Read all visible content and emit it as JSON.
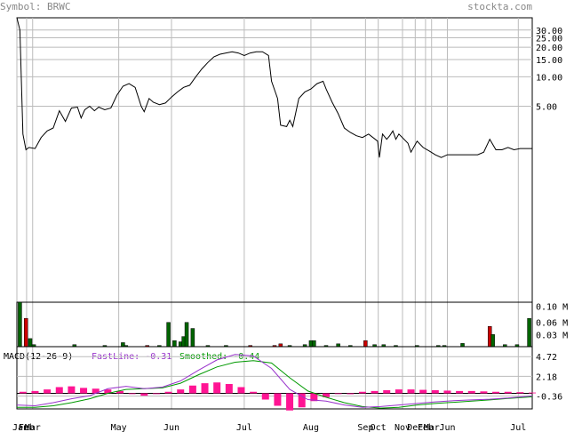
{
  "header": {
    "symbol_label": "Symbol: BRWC",
    "brand": "stockta.com"
  },
  "colors": {
    "header_text": "#888888",
    "frame": "#000000",
    "grid": "#bbbbbb",
    "price_line": "#000000",
    "volume_up": "#006400",
    "volume_down": "#cc0000",
    "fastline": "#9933cc",
    "smoothed": "#009900",
    "histogram": "#ff1493",
    "axis_text": "#000000"
  },
  "chart_data": [
    {
      "type": "line",
      "panel": "price",
      "scale": "log",
      "ylim": [
        0.05,
        40
      ],
      "y_ticks": [
        30,
        25,
        20,
        15,
        10,
        5
      ],
      "y_tick_labels": [
        "30.00",
        "25.00",
        "20.00",
        "15.00",
        "10.00",
        "5.00"
      ],
      "series": [
        {
          "values": [
            [
              0.0,
              60
            ],
            [
              0.5,
              30
            ],
            [
              1.0,
              2.6
            ],
            [
              1.5,
              1.8
            ],
            [
              2.0,
              1.9
            ],
            [
              3.0,
              1.85
            ],
            [
              4.0,
              2.4
            ],
            [
              5.0,
              2.8
            ],
            [
              6.0,
              3.0
            ],
            [
              7.0,
              4.5
            ],
            [
              8.0,
              3.5
            ],
            [
              9.0,
              4.8
            ],
            [
              10.0,
              4.9
            ],
            [
              10.6,
              3.8
            ],
            [
              11.2,
              4.6
            ],
            [
              12.0,
              5.0
            ],
            [
              12.8,
              4.5
            ],
            [
              13.5,
              4.9
            ],
            [
              14.5,
              4.6
            ],
            [
              15.5,
              4.8
            ],
            [
              16.5,
              6.5
            ],
            [
              17.5,
              8.0
            ],
            [
              18.5,
              8.5
            ],
            [
              19.5,
              7.8
            ],
            [
              20.5,
              5.0
            ],
            [
              21.0,
              4.4
            ],
            [
              21.8,
              6.0
            ],
            [
              22.5,
              5.5
            ],
            [
              23.5,
              5.2
            ],
            [
              24.5,
              5.4
            ],
            [
              25.5,
              6.2
            ],
            [
              26.5,
              7.0
            ],
            [
              27.5,
              7.8
            ],
            [
              28.5,
              8.2
            ],
            [
              29.5,
              10
            ],
            [
              30.5,
              12
            ],
            [
              31.5,
              14
            ],
            [
              32.5,
              16
            ],
            [
              33.5,
              17
            ],
            [
              34.5,
              17.5
            ],
            [
              35.5,
              18
            ],
            [
              36.5,
              17.5
            ],
            [
              37.5,
              16.5
            ],
            [
              38.5,
              17.5
            ],
            [
              39.5,
              18
            ],
            [
              40.5,
              18
            ],
            [
              41.5,
              16.5
            ],
            [
              42.0,
              9.0
            ],
            [
              43.0,
              6.0
            ],
            [
              43.5,
              3.2
            ],
            [
              44.5,
              3.1
            ],
            [
              45.0,
              3.6
            ],
            [
              45.5,
              3.1
            ],
            [
              46.5,
              6.0
            ],
            [
              47.5,
              7.0
            ],
            [
              48.5,
              7.5
            ],
            [
              49.5,
              8.5
            ],
            [
              50.5,
              9.0
            ],
            [
              51.0,
              7.5
            ],
            [
              52.0,
              5.5
            ],
            [
              53.0,
              4.2
            ],
            [
              54.0,
              3.0
            ],
            [
              55.0,
              2.7
            ],
            [
              56.0,
              2.5
            ],
            [
              57.0,
              2.4
            ],
            [
              58.0,
              2.6
            ],
            [
              59.5,
              2.2
            ],
            [
              59.8,
              1.5
            ],
            [
              60.3,
              2.6
            ],
            [
              61.0,
              2.3
            ],
            [
              61.5,
              2.5
            ],
            [
              62.0,
              2.8
            ],
            [
              62.5,
              2.3
            ],
            [
              63.0,
              2.6
            ],
            [
              64.5,
              2.1
            ],
            [
              65.0,
              1.7
            ],
            [
              66.0,
              2.2
            ],
            [
              67.0,
              1.9
            ],
            [
              68.0,
              1.75
            ],
            [
              69.0,
              1.6
            ],
            [
              70.0,
              1.5
            ],
            [
              71.0,
              1.6
            ],
            [
              72.0,
              1.6
            ],
            [
              73.0,
              1.6
            ],
            [
              74.0,
              1.6
            ],
            [
              75.0,
              1.6
            ],
            [
              76.0,
              1.6
            ],
            [
              77.0,
              1.7
            ],
            [
              78.0,
              2.3
            ],
            [
              79.0,
              1.8
            ],
            [
              80.0,
              1.8
            ],
            [
              81.0,
              1.9
            ],
            [
              82.0,
              1.8
            ],
            [
              83.0,
              1.85
            ],
            [
              84.0,
              1.85
            ],
            [
              85.0,
              1.85
            ]
          ]
        }
      ],
      "x_ticks": [
        "Jan",
        "Feb",
        "Mar",
        "May",
        "Jun",
        "Jul",
        "Aug",
        "Sep",
        "Oct",
        "Nov",
        "Dec",
        "Feb",
        "Mar",
        "Jun",
        "Jul"
      ],
      "x_tick_positions": [
        0.0,
        1.6,
        2.6,
        16.8,
        25.5,
        37.5,
        48.5,
        57.5,
        59.6,
        63.6,
        65.7,
        67.4,
        68.4,
        71.0,
        82.7
      ],
      "xlim": [
        0,
        85
      ],
      "grid": true
    },
    {
      "type": "bar",
      "panel": "volume",
      "ylim": [
        0,
        0.11
      ],
      "y_ticks": [
        0.1,
        0.06,
        0.03
      ],
      "y_tick_labels": [
        "0.10 M",
        "0.06 M",
        "0.03 M"
      ],
      "unit": "M",
      "series": [
        {
          "values": [
            [
              0.5,
              0.11,
              "up"
            ],
            [
              1.5,
              0.07,
              "down"
            ],
            [
              2.2,
              0.02,
              "up"
            ],
            [
              2.8,
              0.005,
              "up"
            ],
            [
              9.5,
              0.005,
              "up"
            ],
            [
              14.5,
              0.003,
              "up"
            ],
            [
              17.5,
              0.01,
              "up"
            ],
            [
              18.0,
              0.003,
              "up"
            ],
            [
              21.5,
              0.003,
              "down"
            ],
            [
              23.5,
              0.003,
              "up"
            ],
            [
              25.0,
              0.06,
              "up"
            ],
            [
              26.0,
              0.015,
              "up"
            ],
            [
              27.0,
              0.012,
              "up"
            ],
            [
              27.5,
              0.025,
              "up"
            ],
            [
              28.0,
              0.06,
              "up"
            ],
            [
              29.0,
              0.045,
              "up"
            ],
            [
              31.5,
              0.003,
              "up"
            ],
            [
              34.5,
              0.003,
              "up"
            ],
            [
              38.5,
              0.003,
              "down"
            ],
            [
              42.5,
              0.003,
              "down"
            ],
            [
              43.5,
              0.007,
              "down"
            ],
            [
              45.0,
              0.003,
              "up"
            ],
            [
              47.5,
              0.005,
              "up"
            ],
            [
              48.5,
              0.015,
              "up"
            ],
            [
              49.0,
              0.015,
              "up"
            ],
            [
              51.0,
              0.003,
              "up"
            ],
            [
              53.0,
              0.007,
              "up"
            ],
            [
              55.0,
              0.003,
              "up"
            ],
            [
              57.5,
              0.015,
              "down"
            ],
            [
              59.0,
              0.005,
              "up"
            ],
            [
              60.5,
              0.005,
              "up"
            ],
            [
              62.5,
              0.003,
              "up"
            ],
            [
              66.0,
              0.003,
              "up"
            ],
            [
              69.5,
              0.003,
              "up"
            ],
            [
              70.5,
              0.003,
              "up"
            ],
            [
              73.5,
              0.008,
              "up"
            ],
            [
              78.0,
              0.05,
              "down"
            ],
            [
              78.5,
              0.03,
              "up"
            ],
            [
              80.5,
              0.005,
              "up"
            ],
            [
              82.5,
              0.005,
              "up"
            ],
            [
              84.5,
              0.07,
              "up"
            ]
          ]
        }
      ],
      "xlim": [
        0,
        85
      ]
    },
    {
      "type": "line",
      "panel": "macd",
      "title": "MACD(12-26-9)",
      "fastline_label": "FastLine: -0.31",
      "smoothed_label": "Smoothed: -0.44",
      "ylim": [
        -2.0,
        6.0
      ],
      "y_ticks": [
        4.72,
        2.18,
        -0.36
      ],
      "y_tick_labels": [
        "4.72",
        "2.18",
        "-0.36"
      ],
      "series": [
        {
          "name": "FastLine",
          "values": [
            [
              0,
              -1.5
            ],
            [
              3,
              -1.6
            ],
            [
              6,
              -1.2
            ],
            [
              9,
              -0.7
            ],
            [
              12,
              -0.3
            ],
            [
              15,
              0.6
            ],
            [
              18,
              0.9
            ],
            [
              21,
              0.6
            ],
            [
              24,
              0.8
            ],
            [
              27,
              1.6
            ],
            [
              30,
              3.0
            ],
            [
              33,
              4.3
            ],
            [
              36,
              5.0
            ],
            [
              39,
              4.8
            ],
            [
              42,
              3.2
            ],
            [
              45,
              0.5
            ],
            [
              48,
              -0.8
            ],
            [
              51,
              -1.0
            ],
            [
              54,
              -1.5
            ],
            [
              57,
              -1.8
            ],
            [
              60,
              -1.7
            ],
            [
              63,
              -1.5
            ],
            [
              66,
              -1.3
            ],
            [
              69,
              -1.1
            ],
            [
              72,
              -0.95
            ],
            [
              75,
              -0.85
            ],
            [
              78,
              -0.75
            ],
            [
              81,
              -0.6
            ],
            [
              84,
              -0.4
            ],
            [
              85,
              -0.31
            ]
          ]
        },
        {
          "name": "Smoothed",
          "values": [
            [
              0,
              -1.8
            ],
            [
              3,
              -1.8
            ],
            [
              6,
              -1.6
            ],
            [
              9,
              -1.2
            ],
            [
              12,
              -0.7
            ],
            [
              15,
              0.0
            ],
            [
              18,
              0.5
            ],
            [
              21,
              0.6
            ],
            [
              24,
              0.7
            ],
            [
              27,
              1.3
            ],
            [
              30,
              2.4
            ],
            [
              33,
              3.4
            ],
            [
              36,
              4.0
            ],
            [
              39,
              4.2
            ],
            [
              42,
              3.9
            ],
            [
              45,
              2.0
            ],
            [
              48,
              0.3
            ],
            [
              51,
              -0.5
            ],
            [
              54,
              -1.2
            ],
            [
              57,
              -1.7
            ],
            [
              60,
              -1.9
            ],
            [
              63,
              -1.8
            ],
            [
              66,
              -1.5
            ],
            [
              69,
              -1.3
            ],
            [
              72,
              -1.15
            ],
            [
              75,
              -1.0
            ],
            [
              78,
              -0.85
            ],
            [
              81,
              -0.65
            ],
            [
              84,
              -0.5
            ],
            [
              85,
              -0.44
            ]
          ]
        },
        {
          "name": "Histogram",
          "values": [
            [
              1,
              0.2
            ],
            [
              3,
              0.3
            ],
            [
              5,
              0.5
            ],
            [
              7,
              0.8
            ],
            [
              9,
              0.9
            ],
            [
              11,
              0.7
            ],
            [
              13,
              0.6
            ],
            [
              15,
              0.5
            ],
            [
              17,
              0.3
            ],
            [
              19,
              -0.1
            ],
            [
              21,
              -0.3
            ],
            [
              23,
              -0.1
            ],
            [
              25,
              0.2
            ],
            [
              27,
              0.5
            ],
            [
              29,
              1.0
            ],
            [
              31,
              1.3
            ],
            [
              33,
              1.4
            ],
            [
              35,
              1.2
            ],
            [
              37,
              0.8
            ],
            [
              39,
              0.2
            ],
            [
              41,
              -0.8
            ],
            [
              43,
              -1.6
            ],
            [
              45,
              -2.2
            ],
            [
              47,
              -1.8
            ],
            [
              49,
              -1.0
            ],
            [
              51,
              -0.5
            ],
            [
              53,
              -0.1
            ],
            [
              55,
              0.0
            ],
            [
              57,
              0.2
            ],
            [
              59,
              0.3
            ],
            [
              61,
              0.4
            ],
            [
              63,
              0.5
            ],
            [
              65,
              0.5
            ],
            [
              67,
              0.45
            ],
            [
              69,
              0.4
            ],
            [
              71,
              0.35
            ],
            [
              73,
              0.3
            ],
            [
              75,
              0.3
            ],
            [
              77,
              0.25
            ],
            [
              79,
              0.2
            ],
            [
              81,
              0.2
            ],
            [
              83,
              0.15
            ],
            [
              85,
              0.1
            ]
          ]
        }
      ],
      "xlim": [
        0,
        85
      ]
    }
  ]
}
